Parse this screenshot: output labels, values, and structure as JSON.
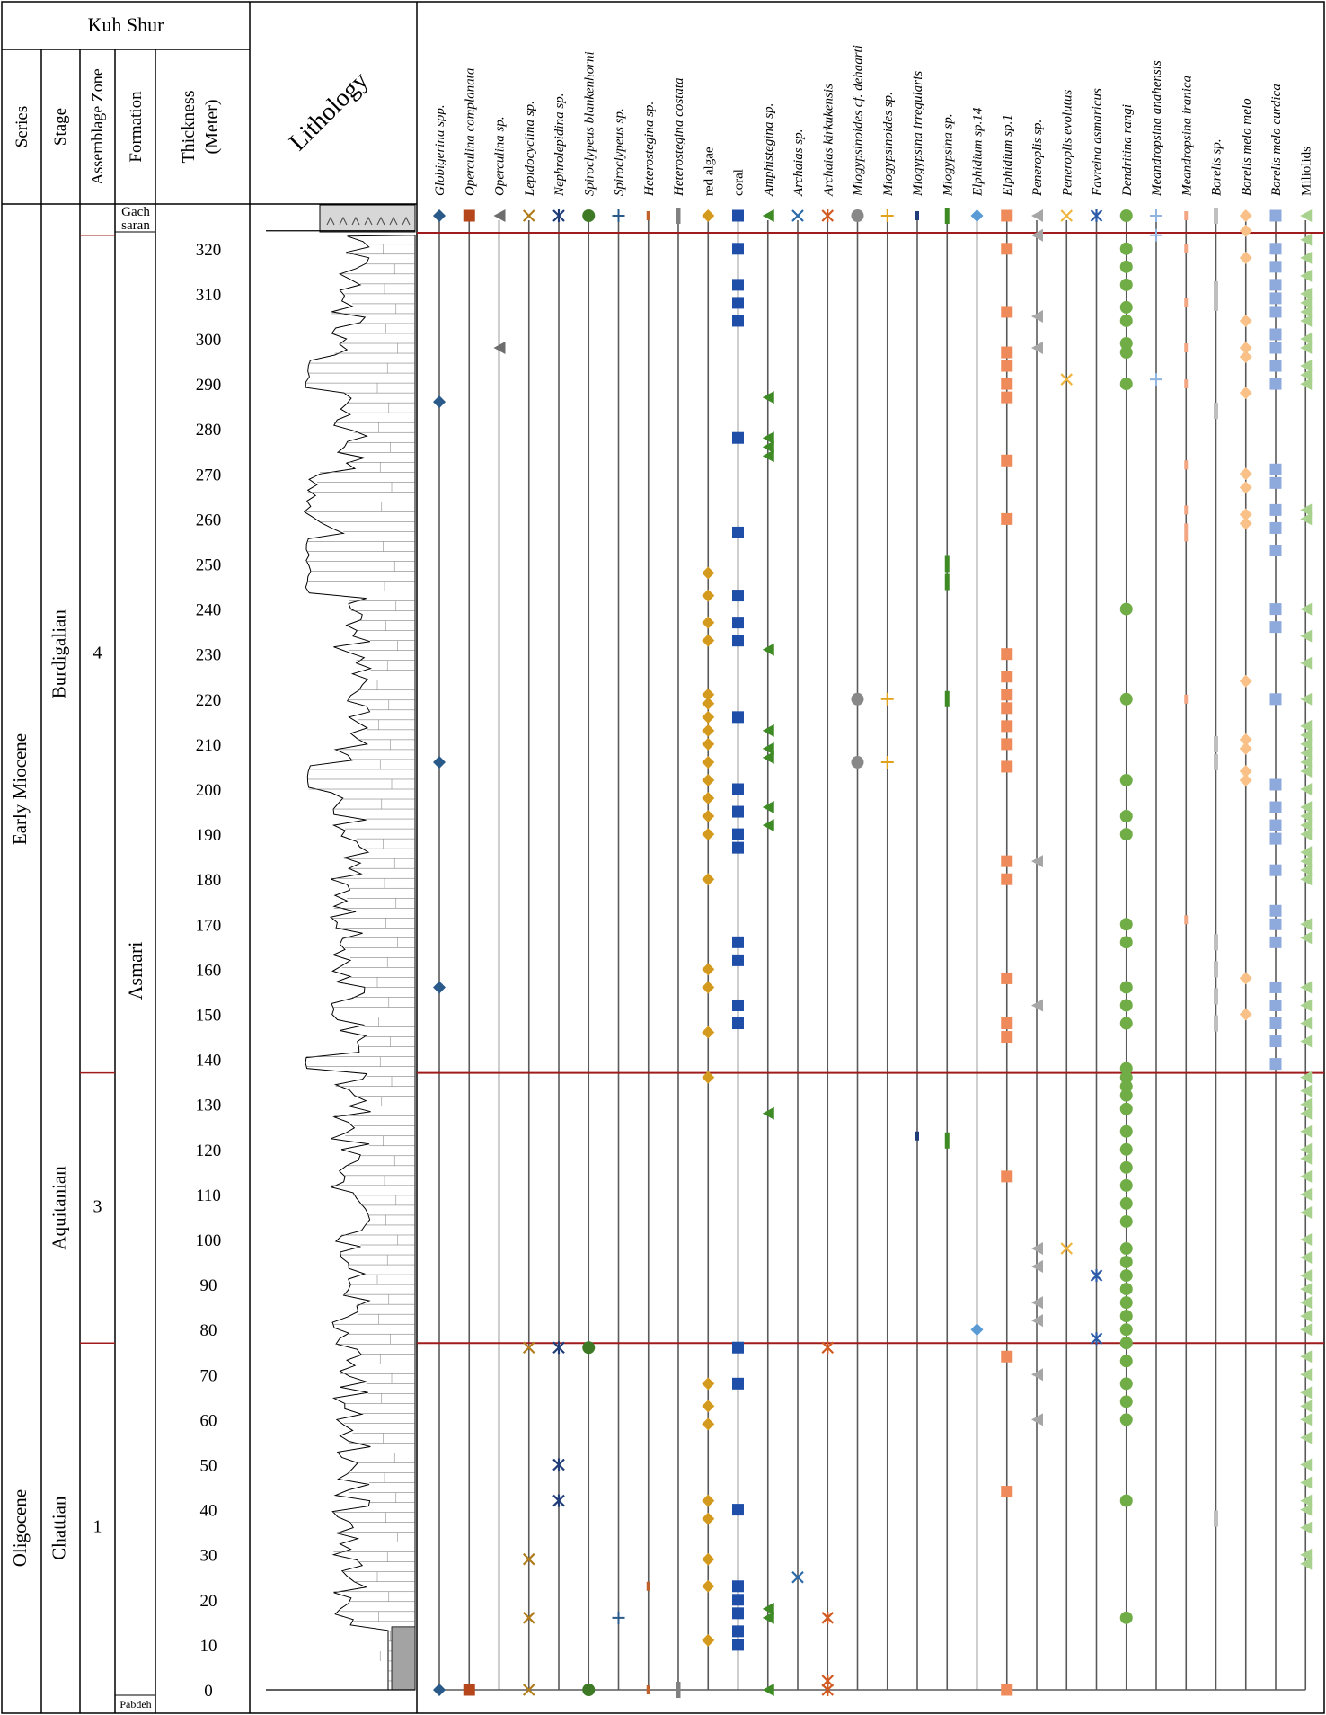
{
  "section_title": "Kuh Shur",
  "columns": {
    "series": "Series",
    "stage": "Stage",
    "zone": "Assemblage Zone",
    "formation": "Formation",
    "thickness_line1": "Thickness",
    "thickness_line2": "(Meter)",
    "lithology": "Lithology"
  },
  "series_units": [
    {
      "label": "Early Miocene",
      "from": 77,
      "to": 323
    },
    {
      "label": "Oligocene",
      "from": -7,
      "to": 77
    }
  ],
  "stage_units": [
    {
      "label": "Burdigalian",
      "from": 137,
      "to": 323
    },
    {
      "label": "Aquitanian",
      "from": 77,
      "to": 137
    },
    {
      "label": "Chattian",
      "from": -7,
      "to": 77
    }
  ],
  "zone_units": [
    {
      "label": "4",
      "from": 137,
      "to": 323
    },
    {
      "label": "3",
      "from": 77,
      "to": 137
    },
    {
      "label": "1",
      "from": -7,
      "to": 77
    }
  ],
  "formations": {
    "top_line1": "Gach",
    "top_line2": "saran",
    "main": "Asmari",
    "bottom": "Pabdeh"
  },
  "chart_data": {
    "type": "range-chart",
    "ylabel": "Thickness (Meter)",
    "ylim": [
      0,
      320
    ],
    "y_ticks": [
      0,
      10,
      20,
      30,
      40,
      50,
      60,
      70,
      80,
      90,
      100,
      110,
      120,
      130,
      140,
      150,
      160,
      170,
      180,
      190,
      200,
      210,
      220,
      230,
      240,
      250,
      260,
      270,
      280,
      290,
      300,
      310,
      320
    ],
    "boundaries_m": [
      137,
      77
    ],
    "taxa": [
      {
        "name": "Globigerina spp.",
        "italic": true,
        "color": "#2a5a8a",
        "symbol": "diamond",
        "points": [
          0,
          156,
          206,
          286
        ]
      },
      {
        "name": "Operculina complanata",
        "italic": true,
        "color": "#b5451b",
        "symbol": "square",
        "points": [
          0
        ]
      },
      {
        "name": "Operculina sp.",
        "italic": true,
        "color": "#6d6d6d",
        "symbol": "tri",
        "points": [
          298
        ]
      },
      {
        "name": "Lepidocyclina sp.",
        "italic": true,
        "color": "#b07c1c",
        "symbol": "x",
        "points": [
          0,
          16,
          29,
          76
        ]
      },
      {
        "name": "Nephrolepidina sp.",
        "italic": true,
        "color": "#1f3c78",
        "symbol": "star",
        "points": [
          42,
          50,
          76
        ]
      },
      {
        "name": "Spiroclypeus blankenhorni",
        "italic": true,
        "color": "#3e7a25",
        "symbol": "circle",
        "points": [
          0,
          76
        ]
      },
      {
        "name": "Spiroclypeus sp.",
        "italic": true,
        "color": "#2a5a8a",
        "symbol": "plus",
        "points": [
          16
        ]
      },
      {
        "name": "Heterostegina sp.",
        "italic": true,
        "color": "#c0602b",
        "symbol": "dash",
        "points": [
          0,
          23
        ]
      },
      {
        "name": "Heterostegina costata",
        "italic": true,
        "color": "#808080",
        "symbol": "bar",
        "points": [
          0
        ]
      },
      {
        "name": "red algae",
        "italic": false,
        "color": "#d49a1e",
        "symbol": "diamond",
        "points": [
          11,
          23,
          29,
          38,
          42,
          59,
          63,
          68,
          136,
          146,
          156,
          160,
          180,
          190,
          194,
          198,
          202,
          206,
          210,
          213,
          216,
          219,
          221,
          233,
          237,
          243,
          248
        ]
      },
      {
        "name": "coral",
        "italic": false,
        "color": "#1f4ea8",
        "symbol": "square",
        "points": [
          10,
          13,
          17,
          20,
          23,
          40,
          68,
          76,
          148,
          152,
          162,
          166,
          187,
          190,
          195,
          200,
          216,
          233,
          237,
          243,
          257,
          278,
          304,
          308,
          312,
          320
        ]
      },
      {
        "name": "Amphistegina sp.",
        "italic": true,
        "color": "#3e8a25",
        "symbol": "tri",
        "points": [
          0,
          16,
          18,
          128,
          192,
          196,
          207,
          209,
          213,
          231,
          274,
          276,
          278,
          287
        ]
      },
      {
        "name": "Archaias sp.",
        "italic": true,
        "color": "#2a6aa8",
        "symbol": "x",
        "points": [
          25
        ]
      },
      {
        "name": "Archaias kirkukensis",
        "italic": true,
        "color": "#d05a22",
        "symbol": "star",
        "points": [
          0,
          2,
          16,
          76
        ]
      },
      {
        "name": "Miogypsinoides cf. dehaarti",
        "italic": true,
        "color": "#888888",
        "symbol": "circle",
        "points": [
          206,
          220
        ]
      },
      {
        "name": "Miogypsinoides sp.",
        "italic": true,
        "color": "#e0a21a",
        "symbol": "plus",
        "points": [
          206,
          220
        ]
      },
      {
        "name": "Miogypsina irregularis",
        "italic": true,
        "color": "#1f3c78",
        "symbol": "dash",
        "points": [
          123
        ]
      },
      {
        "name": "Miogypsina sp.",
        "italic": true,
        "color": "#3e8a25",
        "symbol": "bar",
        "points": [
          122,
          220,
          246,
          250
        ]
      },
      {
        "name": "Elphidium sp.14",
        "italic": true,
        "color": "#5b9bd5",
        "symbol": "diamond",
        "points": [
          80
        ]
      },
      {
        "name": "Elphidium sp.1",
        "italic": true,
        "color": "#ef8a5a",
        "symbol": "square",
        "points": [
          0,
          44,
          74,
          114,
          145,
          148,
          158,
          180,
          184,
          205,
          210,
          214,
          218,
          221,
          225,
          230,
          260,
          273,
          287,
          290,
          294,
          297,
          306,
          320
        ]
      },
      {
        "name": "Peneroplis sp.",
        "italic": true,
        "color": "#a6a6a6",
        "symbol": "tri",
        "points": [
          60,
          70,
          82,
          86,
          94,
          98,
          152,
          184,
          298,
          305,
          323
        ]
      },
      {
        "name": "Peneroplis evolutus",
        "italic": true,
        "color": "#f0b43c",
        "symbol": "x",
        "points": [
          98,
          291
        ]
      },
      {
        "name": "Favreina asmaricus",
        "italic": true,
        "color": "#2a5aa8",
        "symbol": "star",
        "points": [
          78,
          92
        ]
      },
      {
        "name": "Dendritina rangi",
        "italic": true,
        "color": "#70ad47",
        "symbol": "circle",
        "points": [
          16,
          42,
          60,
          64,
          68,
          73,
          77,
          80,
          83,
          86,
          89,
          92,
          95,
          98,
          104,
          108,
          112,
          116,
          120,
          124,
          129,
          132,
          134,
          136,
          138,
          148,
          152,
          156,
          166,
          170,
          190,
          194,
          202,
          220,
          240,
          290,
          297,
          299,
          304,
          307,
          312,
          316,
          320
        ]
      },
      {
        "name": "Meandropsina anahensis",
        "italic": true,
        "color": "#8fb4e0",
        "symbol": "plus",
        "points": [
          291,
          323
        ]
      },
      {
        "name": "Meandropsina iranica",
        "italic": true,
        "color": "#f4a582",
        "symbol": "dash",
        "points": [
          171,
          220,
          256,
          258,
          262,
          272,
          290,
          298,
          308,
          320
        ]
      },
      {
        "name": "Borelis sp.",
        "italic": true,
        "color": "#bfbfbf",
        "symbol": "bar",
        "points": [
          38,
          148,
          154,
          160,
          166,
          206,
          210,
          284,
          308,
          311
        ]
      },
      {
        "name": "Borelis melo melo",
        "italic": true,
        "color": "#f9c188",
        "symbol": "diamond",
        "points": [
          150,
          158,
          202,
          204,
          209,
          211,
          224,
          259,
          261,
          267,
          270,
          288,
          296,
          298,
          304,
          318,
          324
        ]
      },
      {
        "name": "Borelis melo curdica",
        "italic": true,
        "color": "#8ea9db",
        "symbol": "square",
        "points": [
          139,
          144,
          148,
          152,
          156,
          166,
          170,
          173,
          182,
          189,
          192,
          196,
          201,
          220,
          236,
          240,
          253,
          258,
          262,
          268,
          271,
          290,
          294,
          298,
          301,
          306,
          309,
          312,
          316,
          320
        ]
      },
      {
        "name": "Miliolids",
        "italic": false,
        "color": "#a9d18e",
        "symbol": "tri",
        "points": [
          28,
          30,
          36,
          40,
          42,
          46,
          50,
          56,
          60,
          63,
          66,
          70,
          74,
          80,
          83,
          86,
          89,
          92,
          96,
          100,
          106,
          110,
          114,
          118,
          120,
          124,
          128,
          130,
          133,
          136,
          144,
          148,
          152,
          156,
          167,
          170,
          180,
          182,
          184,
          186,
          190,
          192,
          194,
          196,
          200,
          204,
          206,
          208,
          210,
          212,
          214,
          220,
          228,
          234,
          240,
          260,
          262,
          290,
          292,
          294,
          298,
          300,
          304,
          306,
          308,
          310,
          314,
          318,
          322
        ]
      }
    ]
  }
}
